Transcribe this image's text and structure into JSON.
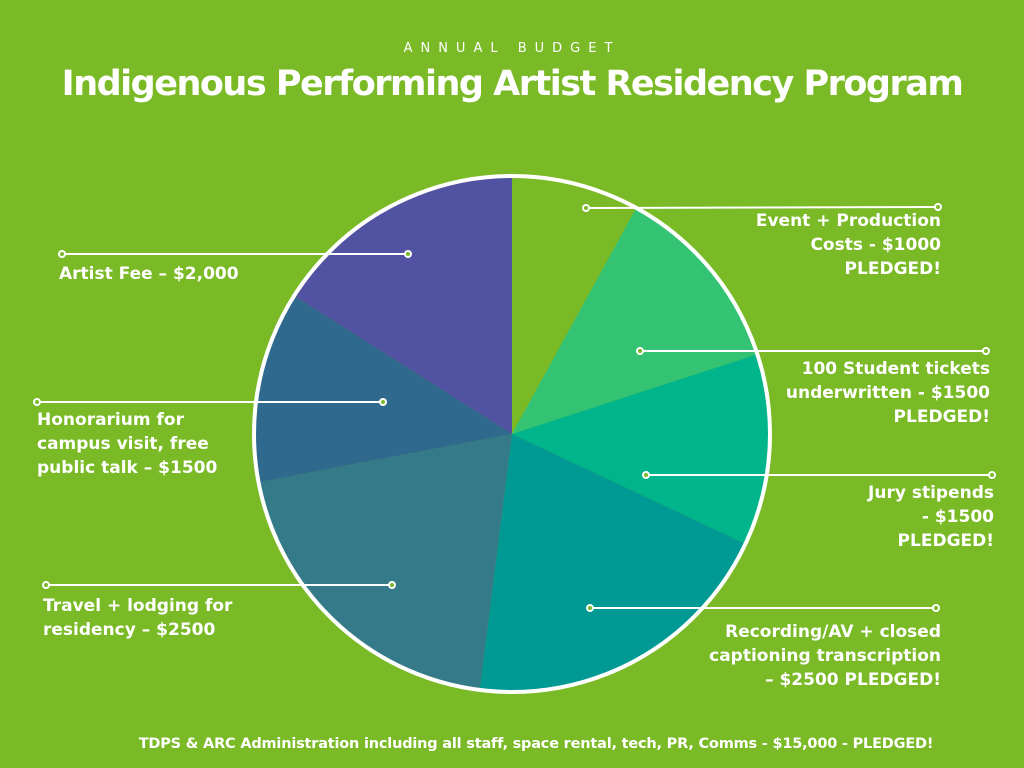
{
  "header": {
    "subtitle": "ANNUAL BUDGET",
    "title": "Indigenous Performing Artist Residency Program"
  },
  "chart_data": {
    "type": "pie",
    "slices": [
      {
        "label": "Event +  Production Costs - $1000 PLEDGED!",
        "value": 1000,
        "color": "#7aba26"
      },
      {
        "label": "100 Student tickets underwritten - $1500 PLEDGED!",
        "value": 1500,
        "color": "#33c373"
      },
      {
        "label": "Jury stipends - $1500 PLEDGED!",
        "value": 1500,
        "color": "#00b48b"
      },
      {
        "label": "Recording/AV + closed captioning transcription – $2500 PLEDGED!",
        "value": 2500,
        "color": "#009993"
      },
      {
        "label": "Travel + lodging for residency – $2500",
        "value": 2500,
        "color": "#347a88"
      },
      {
        "label": "Honorarium for campus visit, free public talk – $1500",
        "value": 1500,
        "color": "#2f698e"
      },
      {
        "label": "Artist Fee – $2,000",
        "value": 2000,
        "color": "#5252a3"
      }
    ]
  },
  "labels": {
    "event": "Event +  Production\nCosts - $1000\nPLEDGED!",
    "tickets": "100 Student tickets\nunderwritten - $1500\nPLEDGED!",
    "jury": "Jury stipends\n- $1500\nPLEDGED!",
    "recording": "Recording/AV + closed\ncaptioning transcription\n– $2500 PLEDGED!",
    "travel": "Travel + lodging for\nresidency – $2500",
    "honorarium": "Honorarium for\ncampus visit, free\npublic talk – $1500",
    "artist": "Artist Fee – $2,000"
  },
  "footer": "TDPS & ARC Administration  including all staff,  space rental, tech, PR,  Comms - $15,000 - PLEDGED!"
}
